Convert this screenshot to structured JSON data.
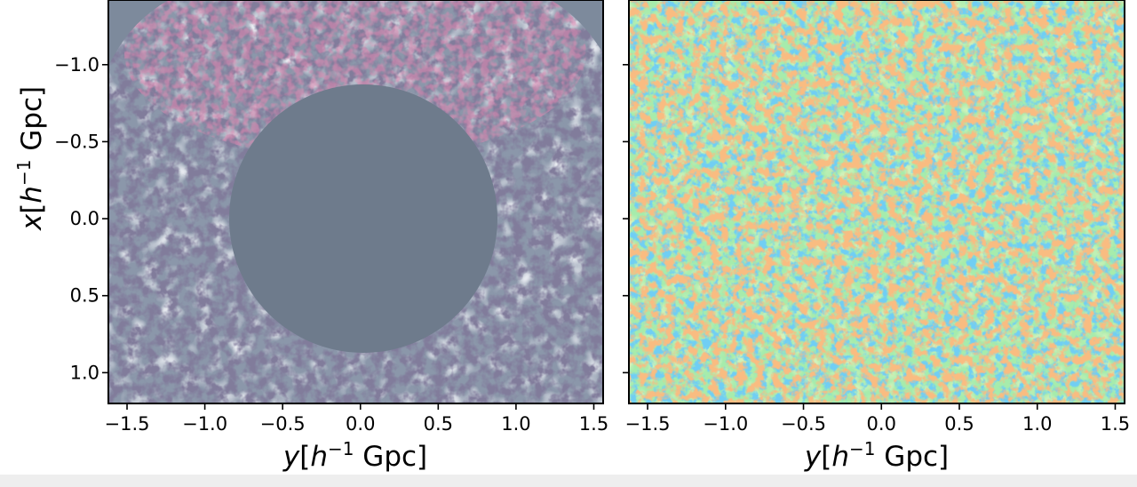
{
  "figure": {
    "panels": [
      {
        "id": "left",
        "axis_y_label": {
          "var": "x",
          "bracket_open": "[",
          "h": "h",
          "exp": "−1",
          "unit": " Gpc]"
        },
        "axis_x_label": {
          "var": "y",
          "bracket_open": "[",
          "h": "h",
          "exp": "−1",
          "unit": " Gpc]"
        },
        "xticks": [
          {
            "value": -1.5,
            "label": "−1.5"
          },
          {
            "value": -1.0,
            "label": "−1.0"
          },
          {
            "value": -0.5,
            "label": "−0.5"
          },
          {
            "value": 0.0,
            "label": "0.0"
          },
          {
            "value": 0.5,
            "label": "0.5"
          },
          {
            "value": 1.0,
            "label": "1.0"
          },
          {
            "value": 1.5,
            "label": "1.5"
          }
        ],
        "yticks": [
          {
            "value": -1.0,
            "label": "−1.0"
          },
          {
            "value": -0.5,
            "label": "−0.5"
          },
          {
            "value": 0.0,
            "label": "0.0"
          },
          {
            "value": 0.5,
            "label": "0.5"
          },
          {
            "value": 1.0,
            "label": "1.0"
          }
        ],
        "xlim": [
          -1.62,
          1.56
        ],
        "ylim_top": -1.42,
        "ylim_bottom": 1.2,
        "image": "cosmic-web-density-slice-with-masked-central-disk",
        "colors": {
          "background": "#7a8799",
          "filament": "#3a3455",
          "highlight": "#c05070",
          "mask": "#6e7b8c"
        }
      },
      {
        "id": "right",
        "axis_x_label": {
          "var": "y",
          "bracket_open": "[",
          "h": "h",
          "exp": "−1",
          "unit": " Gpc]"
        },
        "xticks": [
          {
            "value": -1.5,
            "label": "−1.5"
          },
          {
            "value": -1.0,
            "label": "−1.0"
          },
          {
            "value": -0.5,
            "label": "−0.5"
          },
          {
            "value": 0.0,
            "label": "0.0"
          },
          {
            "value": 0.5,
            "label": "0.5"
          },
          {
            "value": 1.0,
            "label": "1.0"
          },
          {
            "value": 1.5,
            "label": "1.5"
          }
        ],
        "yticks": [
          {
            "value": -1.0
          },
          {
            "value": -0.5
          },
          {
            "value": 0.0
          },
          {
            "value": 0.5
          },
          {
            "value": 1.0
          }
        ],
        "xlim": [
          -1.62,
          1.56
        ],
        "ylim_top": -1.42,
        "ylim_bottom": 1.2,
        "image": "gaussian-random-field-jet-colormap",
        "colors": {
          "background": "#9fe8a6",
          "low": "#2a9be0",
          "high": "#f0703a"
        }
      }
    ]
  }
}
